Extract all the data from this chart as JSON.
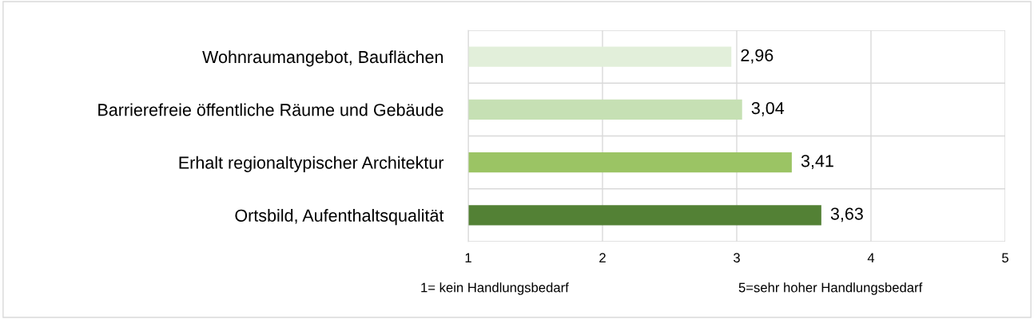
{
  "chart_data": {
    "type": "bar",
    "orientation": "horizontal",
    "categories": [
      "Wohnraumangebot, Bauflächen",
      "Barrierefreie öffentliche Räume und Gebäude",
      "Erhalt regionaltypischer Architektur",
      "Ortsbild, Aufenthaltsqualität"
    ],
    "values": [
      2.96,
      3.04,
      3.41,
      3.63
    ],
    "colors": [
      "#e2efda",
      "#c6e0b4",
      "#9bc464",
      "#538135"
    ],
    "value_labels": [
      "2,96",
      "3,04",
      "3,41",
      "3,63"
    ],
    "xlim": [
      1,
      5
    ],
    "xticks": [
      1,
      2,
      3,
      4,
      5
    ],
    "grid": true,
    "legend": false,
    "annotations": [
      "1= kein Handlungsbedarf",
      "5=sehr hoher Handlungsbedarf"
    ]
  }
}
